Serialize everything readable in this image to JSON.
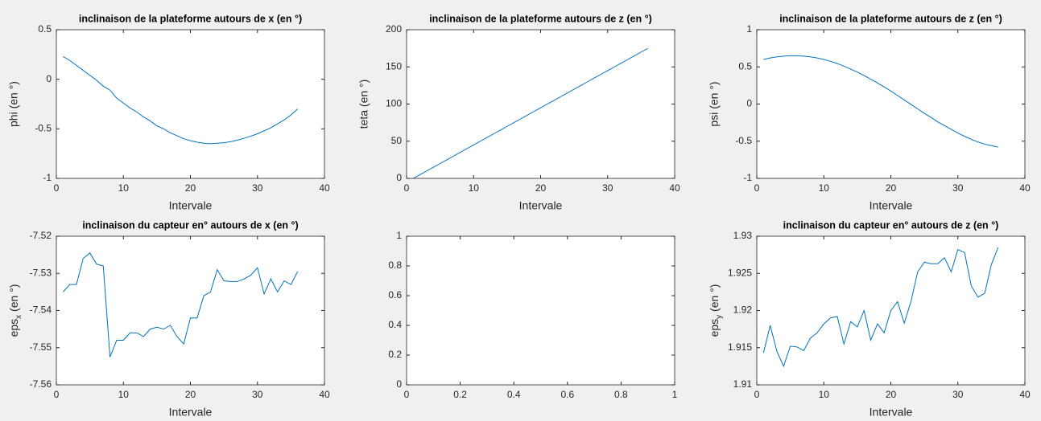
{
  "chart_data": [
    {
      "type": "line",
      "title": "inclinaison de la plateforme autours de x (en °)",
      "xlabel": "Intervale",
      "ylabel": "phi (en °)",
      "x": [
        1,
        2,
        3,
        4,
        5,
        6,
        7,
        8,
        9,
        10,
        11,
        12,
        13,
        14,
        15,
        16,
        17,
        18,
        19,
        20,
        21,
        22,
        23,
        24,
        25,
        26,
        27,
        28,
        29,
        30,
        31,
        32,
        33,
        34,
        35,
        36
      ],
      "series": [
        {
          "color": "#0072bd",
          "values": [
            0.23,
            0.19,
            0.14,
            0.09,
            0.04,
            -0.01,
            -0.07,
            -0.11,
            -0.19,
            -0.24,
            -0.29,
            -0.33,
            -0.38,
            -0.42,
            -0.47,
            -0.5,
            -0.54,
            -0.57,
            -0.6,
            -0.62,
            -0.635,
            -0.645,
            -0.65,
            -0.645,
            -0.64,
            -0.63,
            -0.615,
            -0.595,
            -0.575,
            -0.55,
            -0.52,
            -0.49,
            -0.45,
            -0.41,
            -0.36,
            -0.3
          ]
        }
      ],
      "xlim": [
        0,
        40
      ],
      "ylim": [
        -1,
        0.5
      ],
      "xticks": [
        0,
        10,
        20,
        30,
        40
      ],
      "yticks": [
        -1,
        -0.5,
        0,
        0.5
      ]
    },
    {
      "type": "line",
      "title": "inclinaison de la plateforme autours de z (en °)",
      "xlabel": "Intervale",
      "ylabel": "teta (en °)",
      "x": [
        1,
        2,
        3,
        4,
        5,
        6,
        7,
        8,
        9,
        10,
        11,
        12,
        13,
        14,
        15,
        16,
        17,
        18,
        19,
        20,
        21,
        22,
        23,
        24,
        25,
        26,
        27,
        28,
        29,
        30,
        31,
        32,
        33,
        34,
        35,
        36
      ],
      "series": [
        {
          "color": "#0072bd",
          "values": [
            0,
            5,
            10,
            15,
            20,
            25,
            30,
            35,
            40,
            45,
            50,
            55,
            60,
            65,
            70,
            75,
            80,
            85,
            90,
            95,
            100,
            105,
            110,
            115,
            120,
            125,
            130,
            135,
            140,
            145,
            150,
            155,
            160,
            165,
            170,
            175
          ]
        }
      ],
      "xlim": [
        0,
        40
      ],
      "ylim": [
        0,
        200
      ],
      "xticks": [
        0,
        10,
        20,
        30,
        40
      ],
      "yticks": [
        0,
        50,
        100,
        150,
        200
      ]
    },
    {
      "type": "line",
      "title": "inclinaison de la plateforme autours de z (en °)",
      "xlabel": "Intervale",
      "ylabel": "psi (en °)",
      "x": [
        1,
        2,
        3,
        4,
        5,
        6,
        7,
        8,
        9,
        10,
        11,
        12,
        13,
        14,
        15,
        16,
        17,
        18,
        19,
        20,
        21,
        22,
        23,
        24,
        25,
        26,
        27,
        28,
        29,
        30,
        31,
        32,
        33,
        34,
        35,
        36
      ],
      "series": [
        {
          "color": "#0072bd",
          "values": [
            0.6,
            0.62,
            0.635,
            0.645,
            0.65,
            0.65,
            0.645,
            0.635,
            0.62,
            0.6,
            0.575,
            0.545,
            0.51,
            0.47,
            0.43,
            0.385,
            0.335,
            0.285,
            0.23,
            0.175,
            0.115,
            0.055,
            -0.005,
            -0.065,
            -0.125,
            -0.18,
            -0.24,
            -0.29,
            -0.34,
            -0.39,
            -0.435,
            -0.475,
            -0.51,
            -0.54,
            -0.56,
            -0.58
          ]
        }
      ],
      "xlim": [
        0,
        40
      ],
      "ylim": [
        -1,
        1
      ],
      "xticks": [
        0,
        10,
        20,
        30,
        40
      ],
      "yticks": [
        -1,
        -0.5,
        0,
        0.5,
        1
      ]
    },
    {
      "type": "line",
      "title": "inclinaison du capteur en°  autours de x (en °)",
      "xlabel": "Intervale",
      "ylabel": "eps_x (en °)",
      "x": [
        1,
        2,
        3,
        4,
        5,
        6,
        7,
        8,
        9,
        10,
        11,
        12,
        13,
        14,
        15,
        16,
        17,
        18,
        19,
        20,
        21,
        22,
        23,
        24,
        25,
        26,
        27,
        28,
        29,
        30,
        31,
        32,
        33,
        34,
        35,
        36
      ],
      "series": [
        {
          "color": "#0072bd",
          "values": [
            -7.535,
            -7.533,
            -7.533,
            -7.526,
            -7.5245,
            -7.5275,
            -7.528,
            -7.5525,
            -7.548,
            -7.548,
            -7.546,
            -7.546,
            -7.547,
            -7.545,
            -7.5445,
            -7.545,
            -7.544,
            -7.547,
            -7.549,
            -7.542,
            -7.542,
            -7.536,
            -7.535,
            -7.529,
            -7.532,
            -7.5322,
            -7.5322,
            -7.5315,
            -7.5305,
            -7.5285,
            -7.5355,
            -7.5315,
            -7.535,
            -7.532,
            -7.533,
            -7.5295
          ]
        }
      ],
      "xlim": [
        0,
        40
      ],
      "ylim": [
        -7.56,
        -7.52
      ],
      "xticks": [
        0,
        10,
        20,
        30,
        40
      ],
      "yticks": [
        -7.56,
        -7.55,
        -7.54,
        -7.53,
        -7.52
      ]
    },
    {
      "type": "line",
      "series": [],
      "xlim": [
        0,
        1
      ],
      "ylim": [
        0,
        1
      ],
      "xticks": [
        0,
        0.2,
        0.4,
        0.6,
        0.8,
        1
      ],
      "yticks": [
        0,
        0.2,
        0.4,
        0.6,
        0.8,
        1
      ]
    },
    {
      "type": "line",
      "title": "inclinaison du capteur en°  autours de z (en °)",
      "xlabel": "Intervale",
      "ylabel": "eps_y (en °)",
      "x": [
        1,
        2,
        3,
        4,
        5,
        6,
        7,
        8,
        9,
        10,
        11,
        12,
        13,
        14,
        15,
        16,
        17,
        18,
        19,
        20,
        21,
        22,
        23,
        24,
        25,
        26,
        27,
        28,
        29,
        30,
        31,
        32,
        33,
        34,
        35,
        36
      ],
      "series": [
        {
          "color": "#0072bd",
          "values": [
            1.9143,
            1.918,
            1.9145,
            1.9125,
            1.9152,
            1.9151,
            1.9146,
            1.9163,
            1.917,
            1.9182,
            1.919,
            1.9192,
            1.9155,
            1.9185,
            1.9178,
            1.92,
            1.916,
            1.9182,
            1.917,
            1.92,
            1.9212,
            1.9183,
            1.9212,
            1.9252,
            1.9265,
            1.9263,
            1.9263,
            1.9271,
            1.9252,
            1.9282,
            1.9278,
            1.9233,
            1.9218,
            1.9223,
            1.9262,
            1.9285
          ]
        }
      ],
      "xlim": [
        0,
        40
      ],
      "ylim": [
        1.91,
        1.93
      ],
      "xticks": [
        0,
        10,
        20,
        30,
        40
      ],
      "yticks": [
        1.91,
        1.915,
        1.92,
        1.925,
        1.93
      ]
    }
  ]
}
